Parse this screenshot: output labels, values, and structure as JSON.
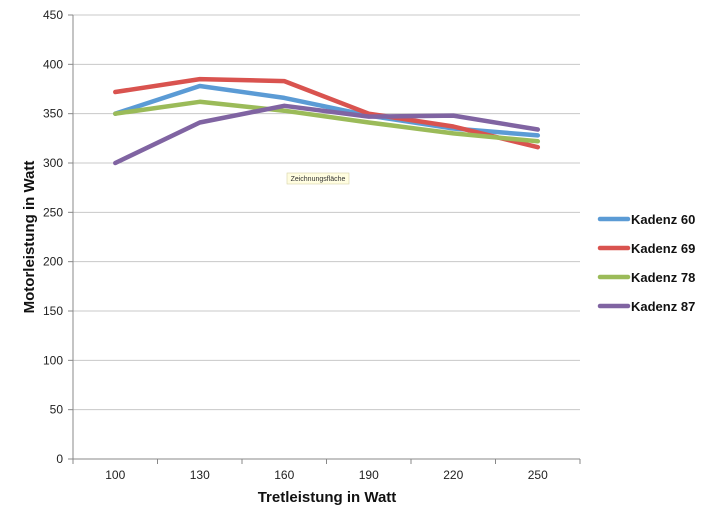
{
  "chart_data": {
    "type": "line",
    "title": "",
    "xlabel": "Tretleistung in Watt",
    "ylabel": "Motorleistung in Watt",
    "categories": [
      "100",
      "130",
      "160",
      "190",
      "220",
      "250"
    ],
    "ylim": [
      0,
      450
    ],
    "yticks": [
      0,
      50,
      100,
      150,
      200,
      250,
      300,
      350,
      400,
      450
    ],
    "grid": "horizontal",
    "legend_position": "right",
    "series": [
      {
        "name": "Kadenz 60",
        "color": "#5b9bd5",
        "values": [
          350,
          378,
          366,
          348,
          335,
          328
        ]
      },
      {
        "name": "Kadenz 69",
        "color": "#d9534f",
        "values": [
          372,
          385,
          383,
          350,
          337,
          316
        ]
      },
      {
        "name": "Kadenz 78",
        "color": "#9bbb59",
        "values": [
          350,
          362,
          353,
          341,
          330,
          322
        ]
      },
      {
        "name": "Kadenz 87",
        "color": "#8064a2",
        "values": [
          300,
          341,
          358,
          347,
          348,
          334
        ]
      }
    ],
    "annotation": "Zeichnungsfläche"
  }
}
